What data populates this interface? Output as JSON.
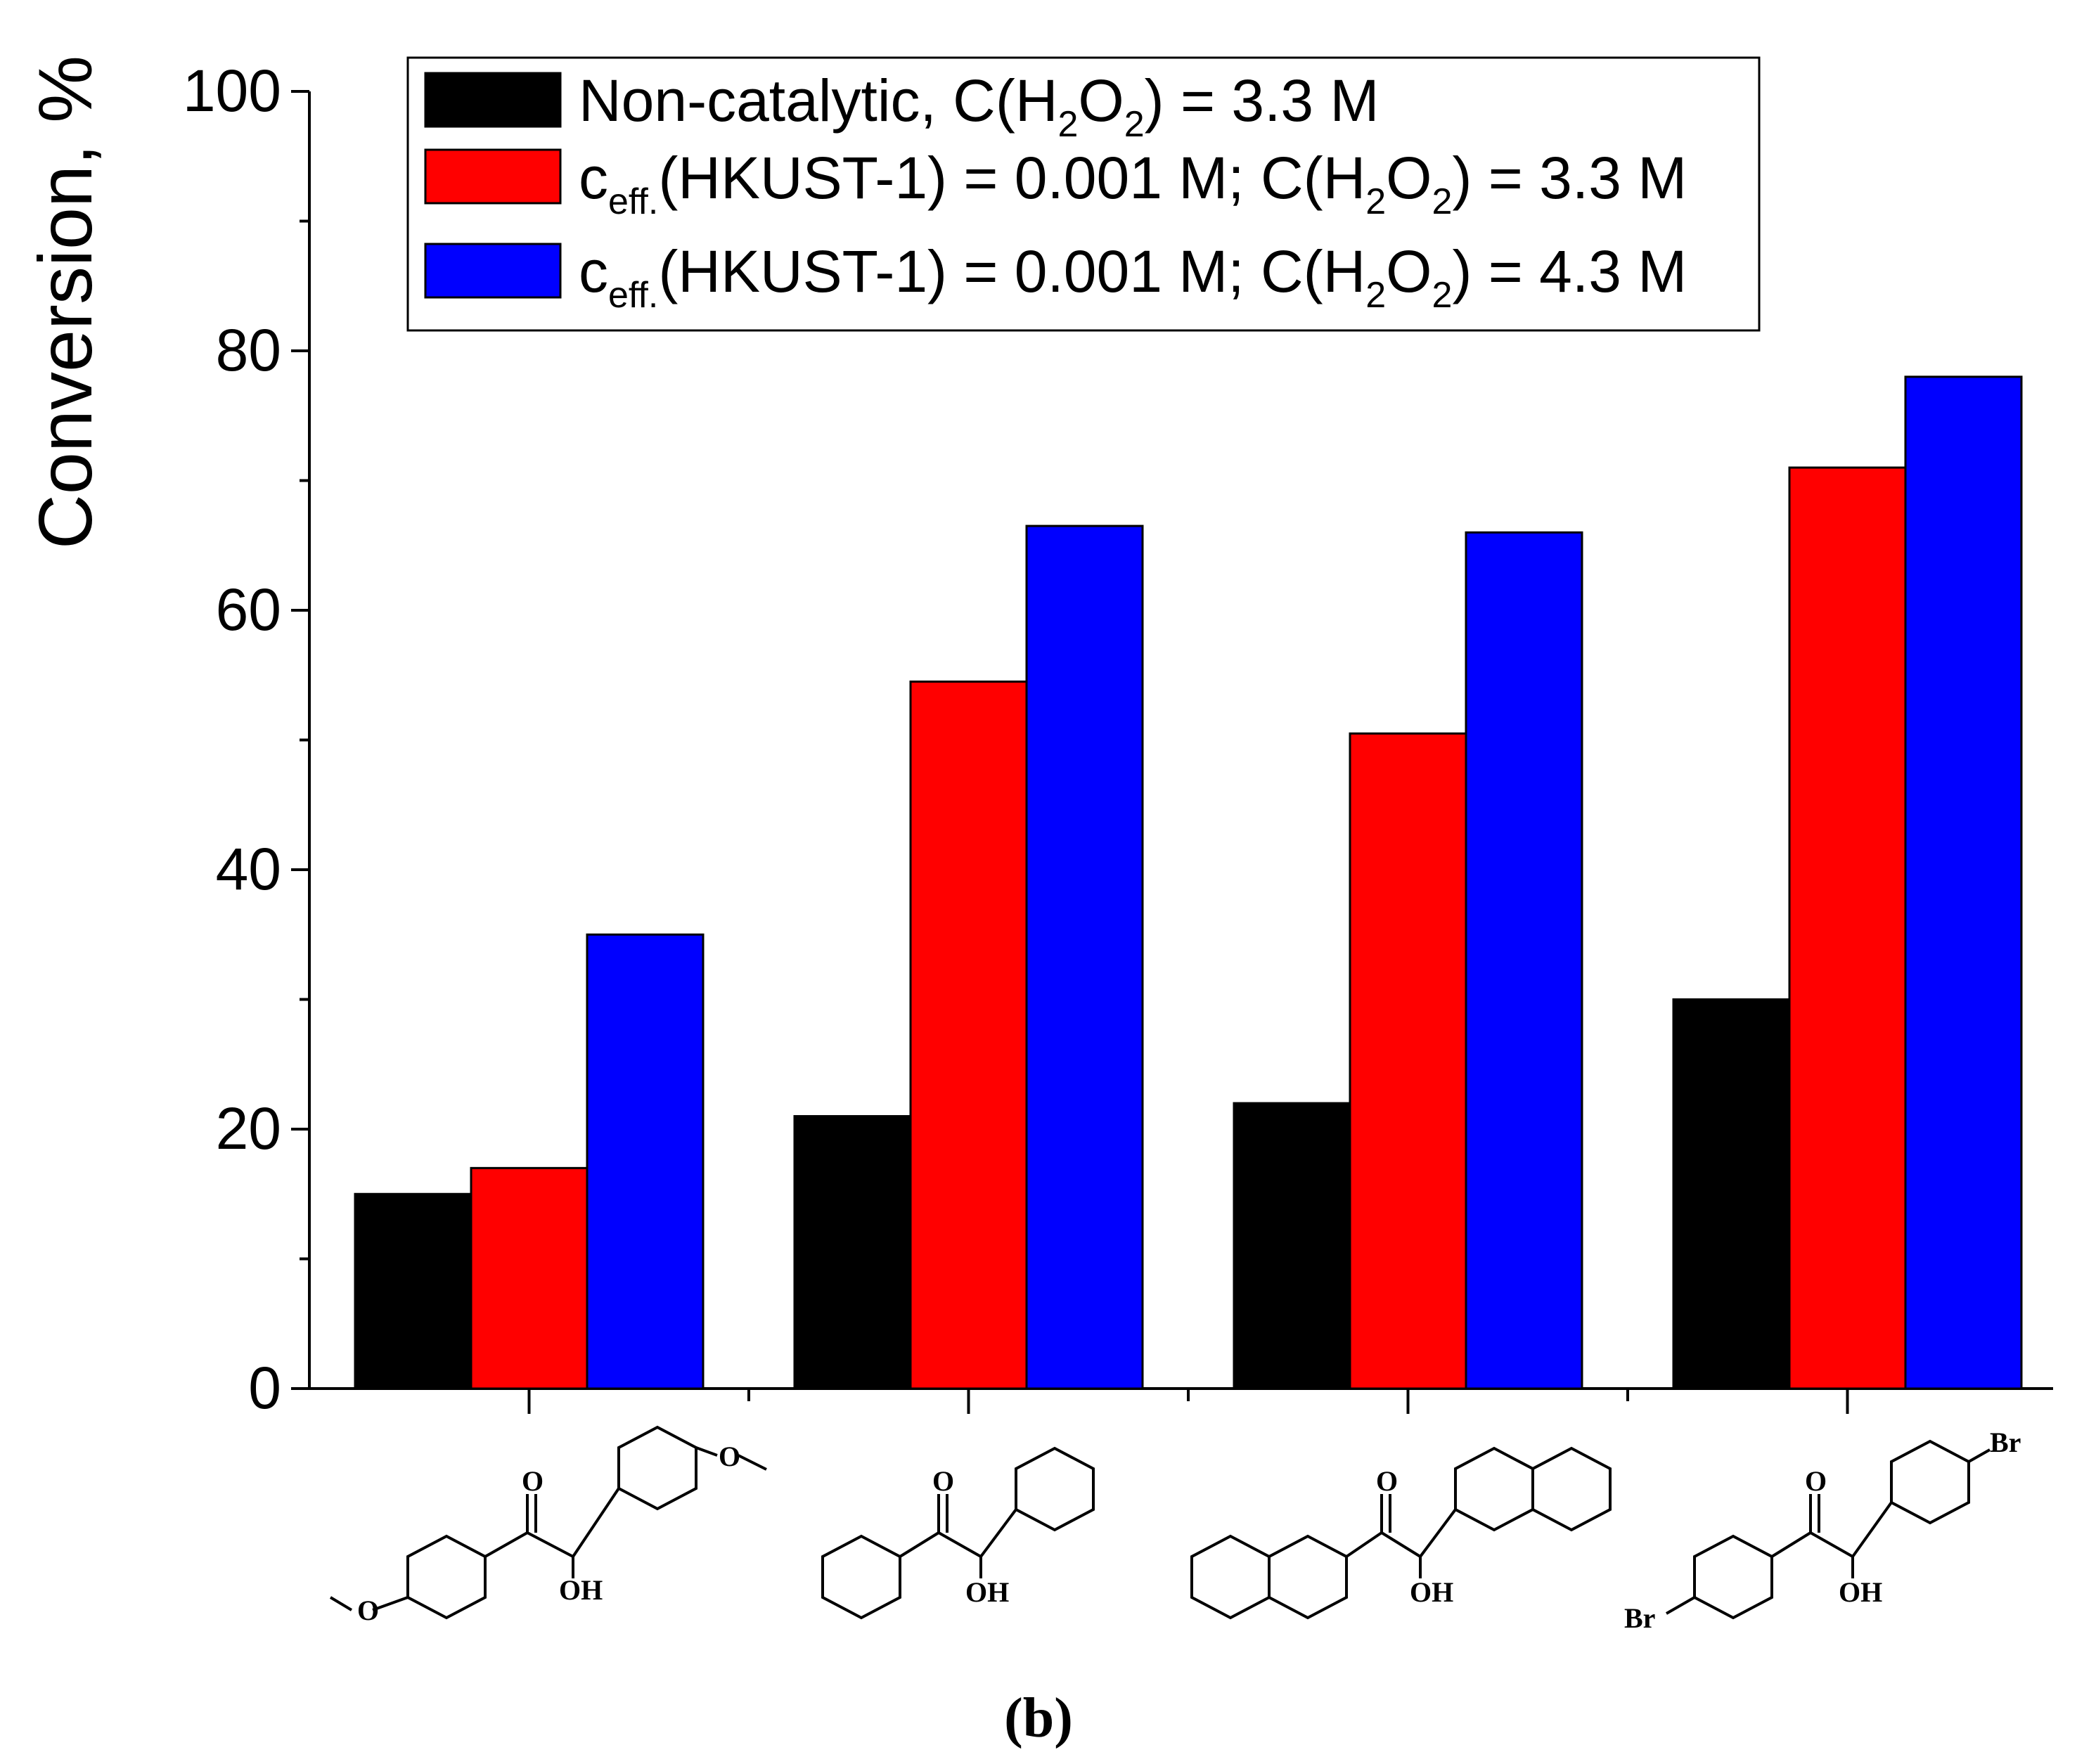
{
  "chart_data": {
    "type": "bar",
    "title": "",
    "xlabel": "",
    "ylabel": "Conversion, %",
    "ylim": [
      0,
      100
    ],
    "yticks": [
      0,
      20,
      40,
      60,
      80,
      100
    ],
    "grid": false,
    "legend_position": "top",
    "categories": [
      "4,4'-dimethoxybenzoin",
      "benzoin",
      "2,2'-naphthoin",
      "4,4'-dibromobenzoin"
    ],
    "series": [
      {
        "name": "Non-catalytic, C(H2O2) = 3.3 M",
        "color": "#000000",
        "values": [
          15,
          21,
          22,
          30
        ]
      },
      {
        "name": "ceff.(HKUST-1) = 0.001 M; C(H2O2) = 3.3 M",
        "color": "#ff0000",
        "values": [
          17,
          54.5,
          50.5,
          71
        ]
      },
      {
        "name": "ceff.(HKUST-1) = 0.001 M; C(H2O2) = 4.3 M",
        "color": "#0000ff",
        "values": [
          35,
          66.5,
          66,
          78
        ]
      }
    ],
    "legend": {
      "entries": [
        {
          "text": "Non-catalytic, C(H",
          "sub1": "2",
          "mid": "O",
          "sub2": "2",
          "tail": ") = 3.3 M"
        },
        {
          "head": "c",
          "sub0": "eff.",
          "text": "(HKUST-1) = 0.001 M; C(H",
          "sub1": "2",
          "mid": "O",
          "sub2": "2",
          "tail": ") = 3.3 M"
        },
        {
          "head": "c",
          "sub0": "eff.",
          "text": "(HKUST-1) = 0.001 M; C(H",
          "sub1": "2",
          "mid": "O",
          "sub2": "2",
          "tail": ") = 4.3 M"
        }
      ]
    },
    "structure_labels": {
      "oxo": "O",
      "hydroxy": "OH",
      "methoxy_o": "O",
      "bromo": "Br"
    },
    "panel_label": "(b)"
  }
}
